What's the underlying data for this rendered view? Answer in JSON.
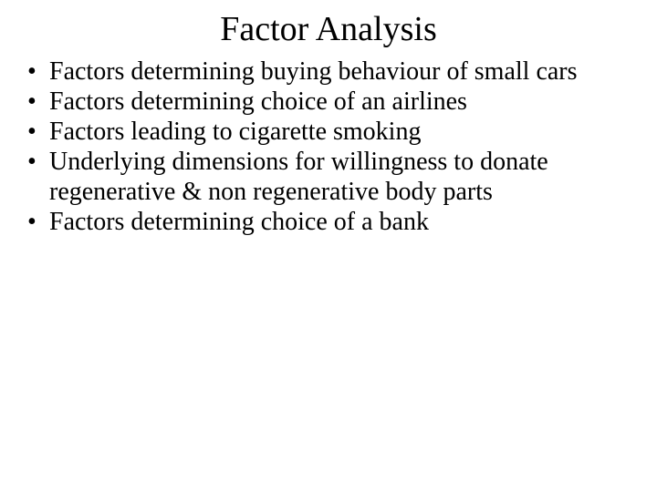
{
  "slide": {
    "title": "Factor Analysis",
    "title_fontsize": 38,
    "body_fontsize": 28,
    "background_color": "#ffffff",
    "text_color": "#000000",
    "font_family": "Times New Roman",
    "bullets": [
      "Factors determining buying behaviour of small cars",
      "Factors determining choice of an airlines",
      "Factors  leading to cigarette smoking",
      "Underlying dimensions for willingness to donate regenerative & non regenerative body parts",
      "Factors determining choice of a bank"
    ]
  }
}
